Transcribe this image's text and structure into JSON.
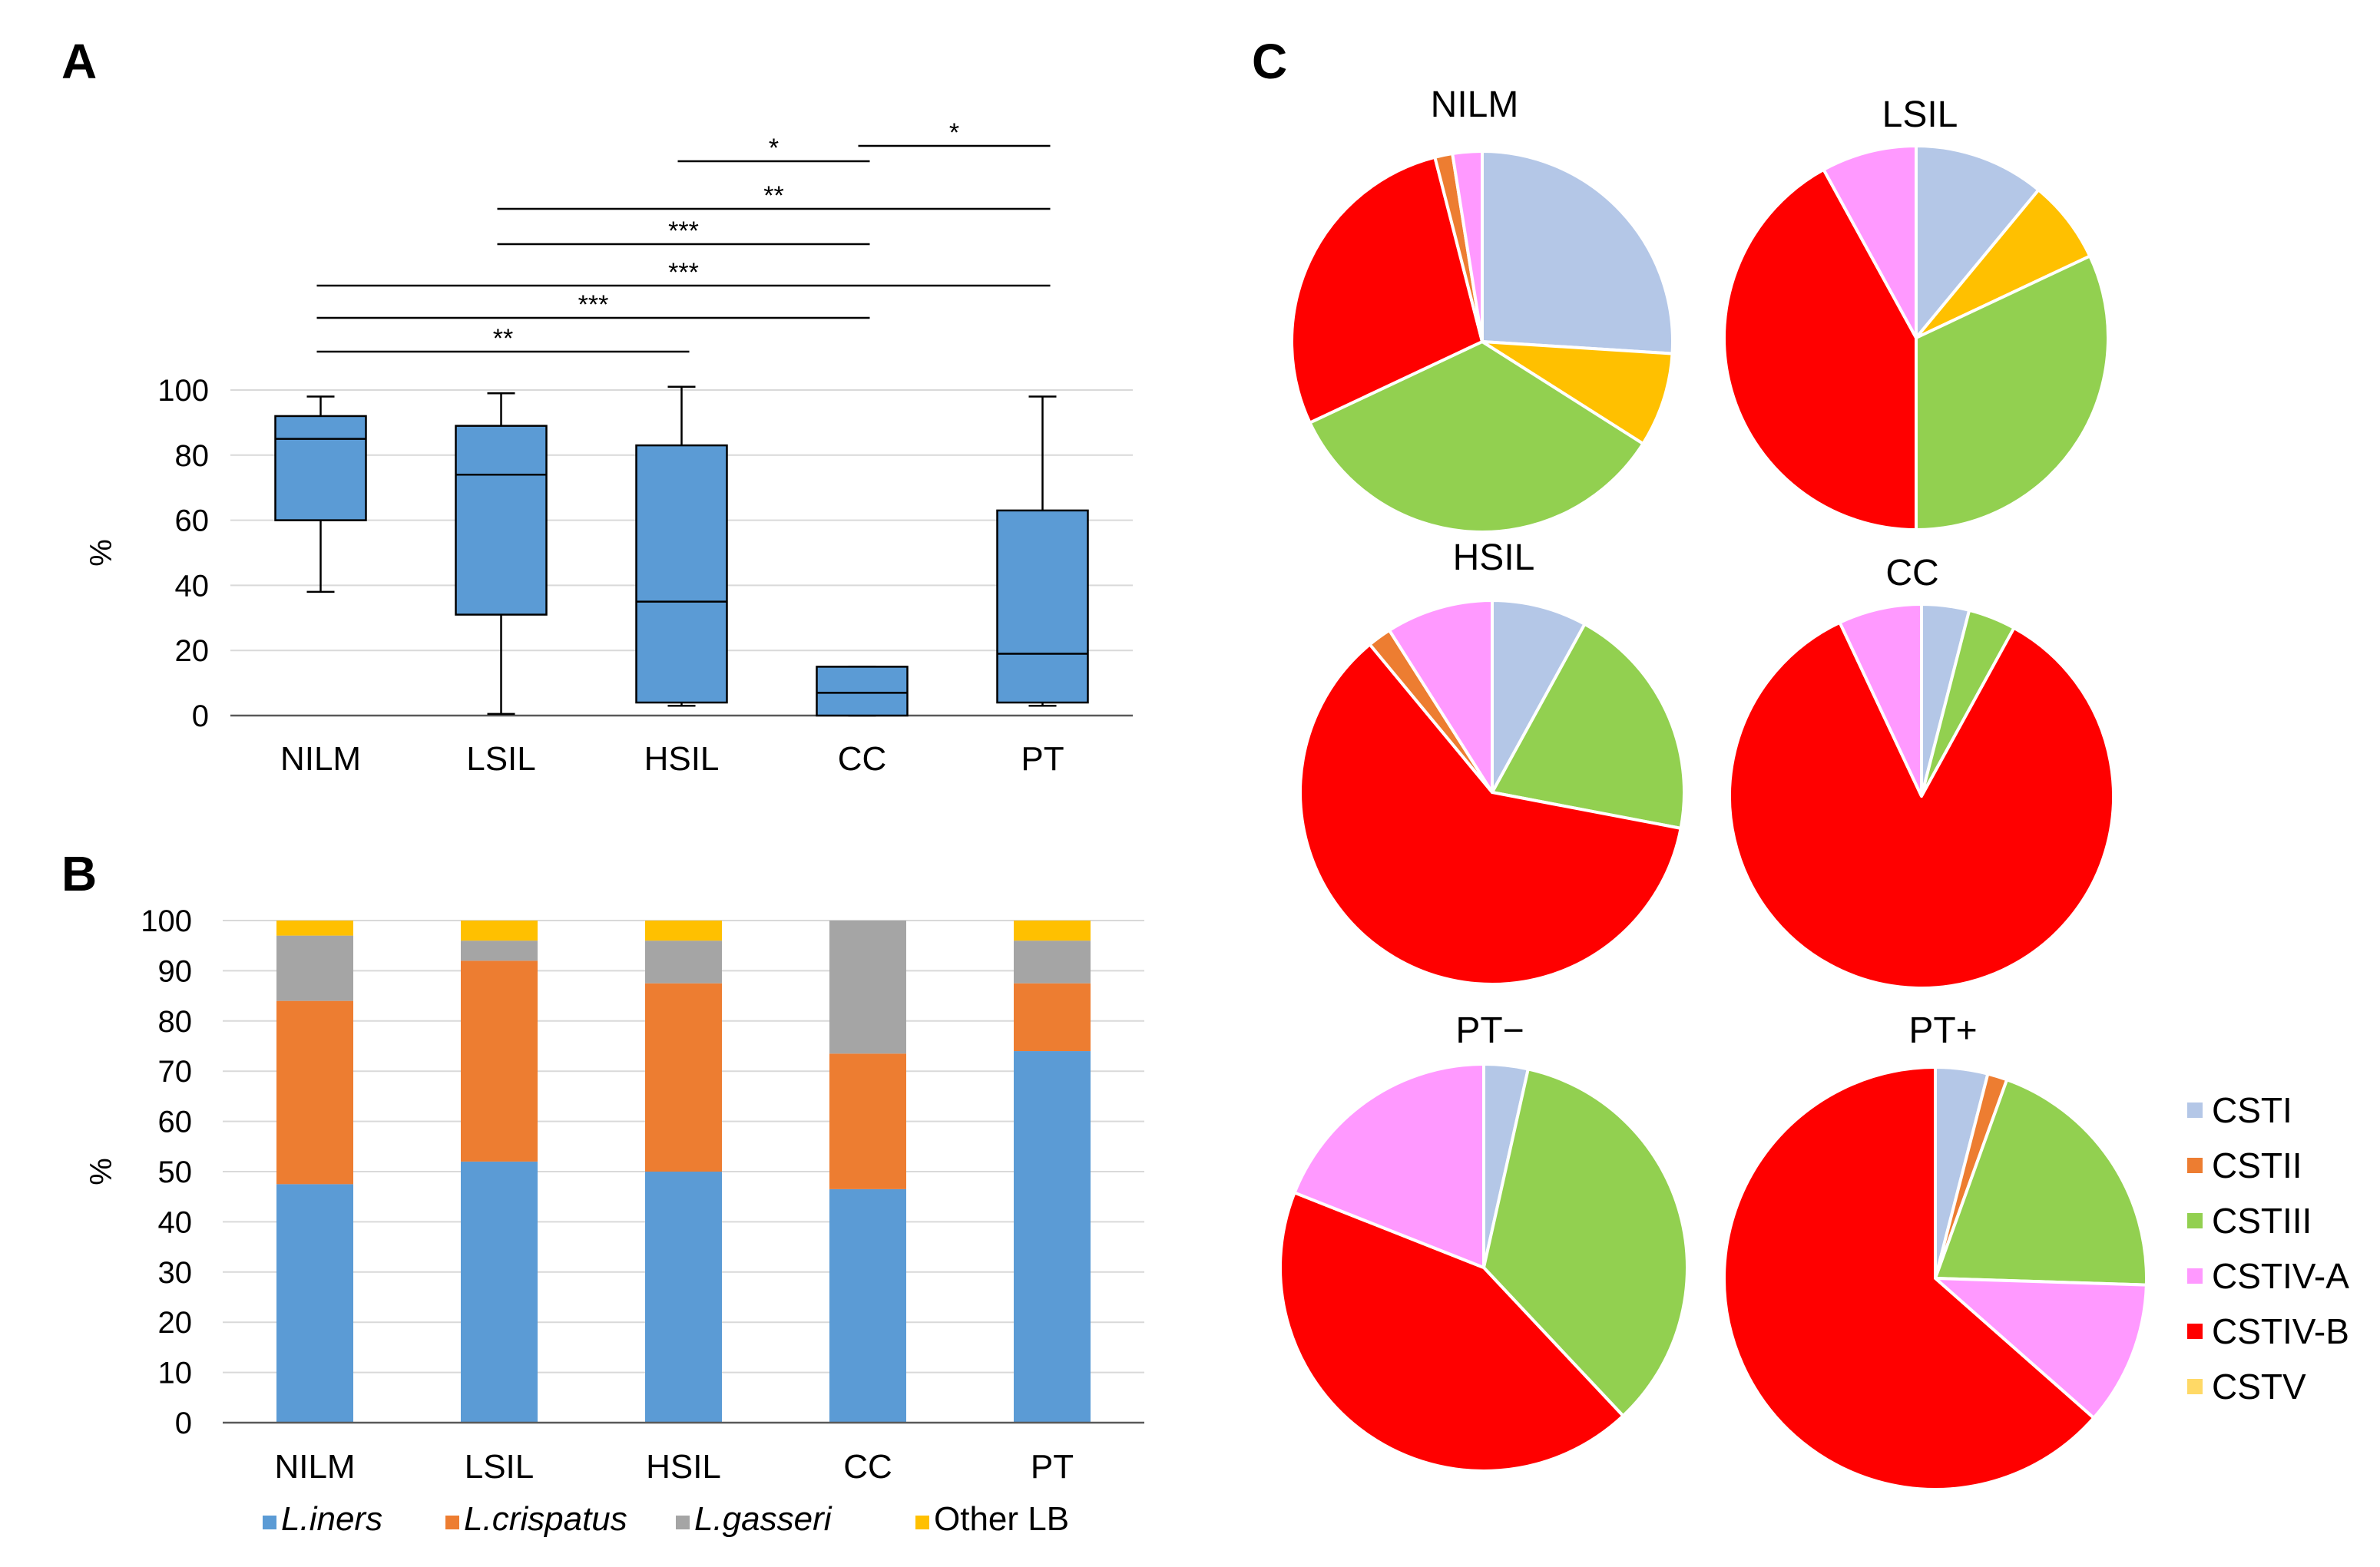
{
  "panel_labels": [
    "A",
    "B",
    "C"
  ],
  "legend_labels": [
    "L.iners",
    "L.crispatus",
    "L.gasseri",
    "Other LB"
  ],
  "cst_legend": [
    "CSTI",
    "CSTII",
    "CSTIII",
    "CSTIV-A",
    "CSTIV-B",
    "CSTV"
  ],
  "chart_data": [
    {
      "id": "A",
      "type": "box",
      "title": "",
      "xlabel": "",
      "ylabel": "%",
      "ylim": [
        0,
        100
      ],
      "yticks": [
        0,
        20,
        40,
        60,
        80,
        100
      ],
      "categories": [
        "NILM",
        "LSIL",
        "HSIL",
        "CC",
        "PT"
      ],
      "boxes": [
        {
          "name": "NILM",
          "min": 38,
          "q1": 60,
          "median": 85,
          "q3": 92,
          "max": 98
        },
        {
          "name": "LSIL",
          "min": 0.5,
          "q1": 31,
          "median": 74,
          "q3": 89,
          "max": 99
        },
        {
          "name": "HSIL",
          "min": 3,
          "q1": 4,
          "median": 35,
          "q3": 83,
          "max": 101
        },
        {
          "name": "CC",
          "min": 0,
          "q1": 0,
          "median": 7,
          "q3": 15,
          "max": 15
        },
        {
          "name": "PT",
          "min": 3,
          "q1": 4,
          "median": 19,
          "q3": 63,
          "max": 98
        }
      ],
      "significance": [
        {
          "from": 2,
          "to": 3,
          "label": "*"
        },
        {
          "from": 3,
          "to": 4,
          "label": "*"
        },
        {
          "from": 1,
          "to": 4,
          "label": "**"
        },
        {
          "from": 1,
          "to": 3,
          "label": "***"
        },
        {
          "from": 0,
          "to": 4,
          "label": "***"
        },
        {
          "from": 0,
          "to": 3,
          "label": "***"
        },
        {
          "from": 0,
          "to": 2,
          "label": "**"
        }
      ],
      "colors": {
        "box": "#5b9bd5"
      }
    },
    {
      "id": "B",
      "type": "bar",
      "stacked": true,
      "title": "",
      "xlabel": "",
      "ylabel": "%",
      "ylim": [
        0,
        100
      ],
      "yticks": [
        0,
        10,
        20,
        30,
        40,
        50,
        60,
        70,
        80,
        90,
        100
      ],
      "categories": [
        "NILM",
        "LSIL",
        "HSIL",
        "CC",
        "PT"
      ],
      "series": [
        {
          "name": "L.iners",
          "color": "#5b9bd5",
          "values": [
            47.5,
            52,
            50,
            46.5,
            74
          ]
        },
        {
          "name": "L.crispatus",
          "color": "#ed7d31",
          "values": [
            36.5,
            40,
            37.5,
            27,
            13.5
          ]
        },
        {
          "name": "L.gasseri",
          "color": "#a5a5a5",
          "values": [
            13,
            4,
            8.5,
            26.5,
            8.5
          ]
        },
        {
          "name": "Other LB",
          "color": "#ffc000",
          "values": [
            3,
            4,
            4,
            0,
            4
          ]
        }
      ],
      "legend": "bottom"
    },
    {
      "id": "C",
      "type": "pie",
      "labels": [
        "CSTI",
        "CSTII",
        "CSTIII",
        "CSTIV-A",
        "CSTIV-B",
        "CSTV"
      ],
      "colors": [
        "#b4c7e7",
        "#ed7d31",
        "#92d050",
        "#ff99ff",
        "#ff0000",
        "#ffc000"
      ],
      "legend": "right",
      "pies": [
        {
          "title": "NILM",
          "slices": [
            {
              "label": "CSTI",
              "value": 26
            },
            {
              "label": "CSTV",
              "value": 8
            },
            {
              "label": "CSTIII",
              "value": 34
            },
            {
              "label": "CSTIV-B",
              "value": 28
            },
            {
              "label": "CSTII",
              "value": 1.5
            },
            {
              "label": "CSTIV-A",
              "value": 2.5
            }
          ]
        },
        {
          "title": "LSIL",
          "slices": [
            {
              "label": "CSTI",
              "value": 11
            },
            {
              "label": "CSTV",
              "value": 7
            },
            {
              "label": "CSTIII",
              "value": 32
            },
            {
              "label": "CSTIV-B",
              "value": 42
            },
            {
              "label": "CSTIV-A",
              "value": 8
            }
          ]
        },
        {
          "title": "HSIL",
          "slices": [
            {
              "label": "CSTI",
              "value": 8
            },
            {
              "label": "CSTIII",
              "value": 20
            },
            {
              "label": "CSTIV-B",
              "value": 61
            },
            {
              "label": "CSTII",
              "value": 2
            },
            {
              "label": "CSTIV-A",
              "value": 9
            }
          ]
        },
        {
          "title": "CC",
          "slices": [
            {
              "label": "CSTI",
              "value": 4
            },
            {
              "label": "CSTIII",
              "value": 4
            },
            {
              "label": "CSTIV-B",
              "value": 85
            },
            {
              "label": "CSTIV-A",
              "value": 7
            }
          ]
        },
        {
          "title": "PT−",
          "slices": [
            {
              "label": "CSTI",
              "value": 3.5
            },
            {
              "label": "CSTIII",
              "value": 34.5
            },
            {
              "label": "CSTIV-B",
              "value": 43
            },
            {
              "label": "CSTIV-A",
              "value": 19
            }
          ]
        },
        {
          "title": "PT+",
          "slices": [
            {
              "label": "CSTI",
              "value": 4
            },
            {
              "label": "CSTII",
              "value": 1.5
            },
            {
              "label": "CSTIII",
              "value": 20
            },
            {
              "label": "CSTIV-A",
              "value": 11
            },
            {
              "label": "CSTIV-B",
              "value": 63.5
            }
          ]
        }
      ]
    }
  ]
}
